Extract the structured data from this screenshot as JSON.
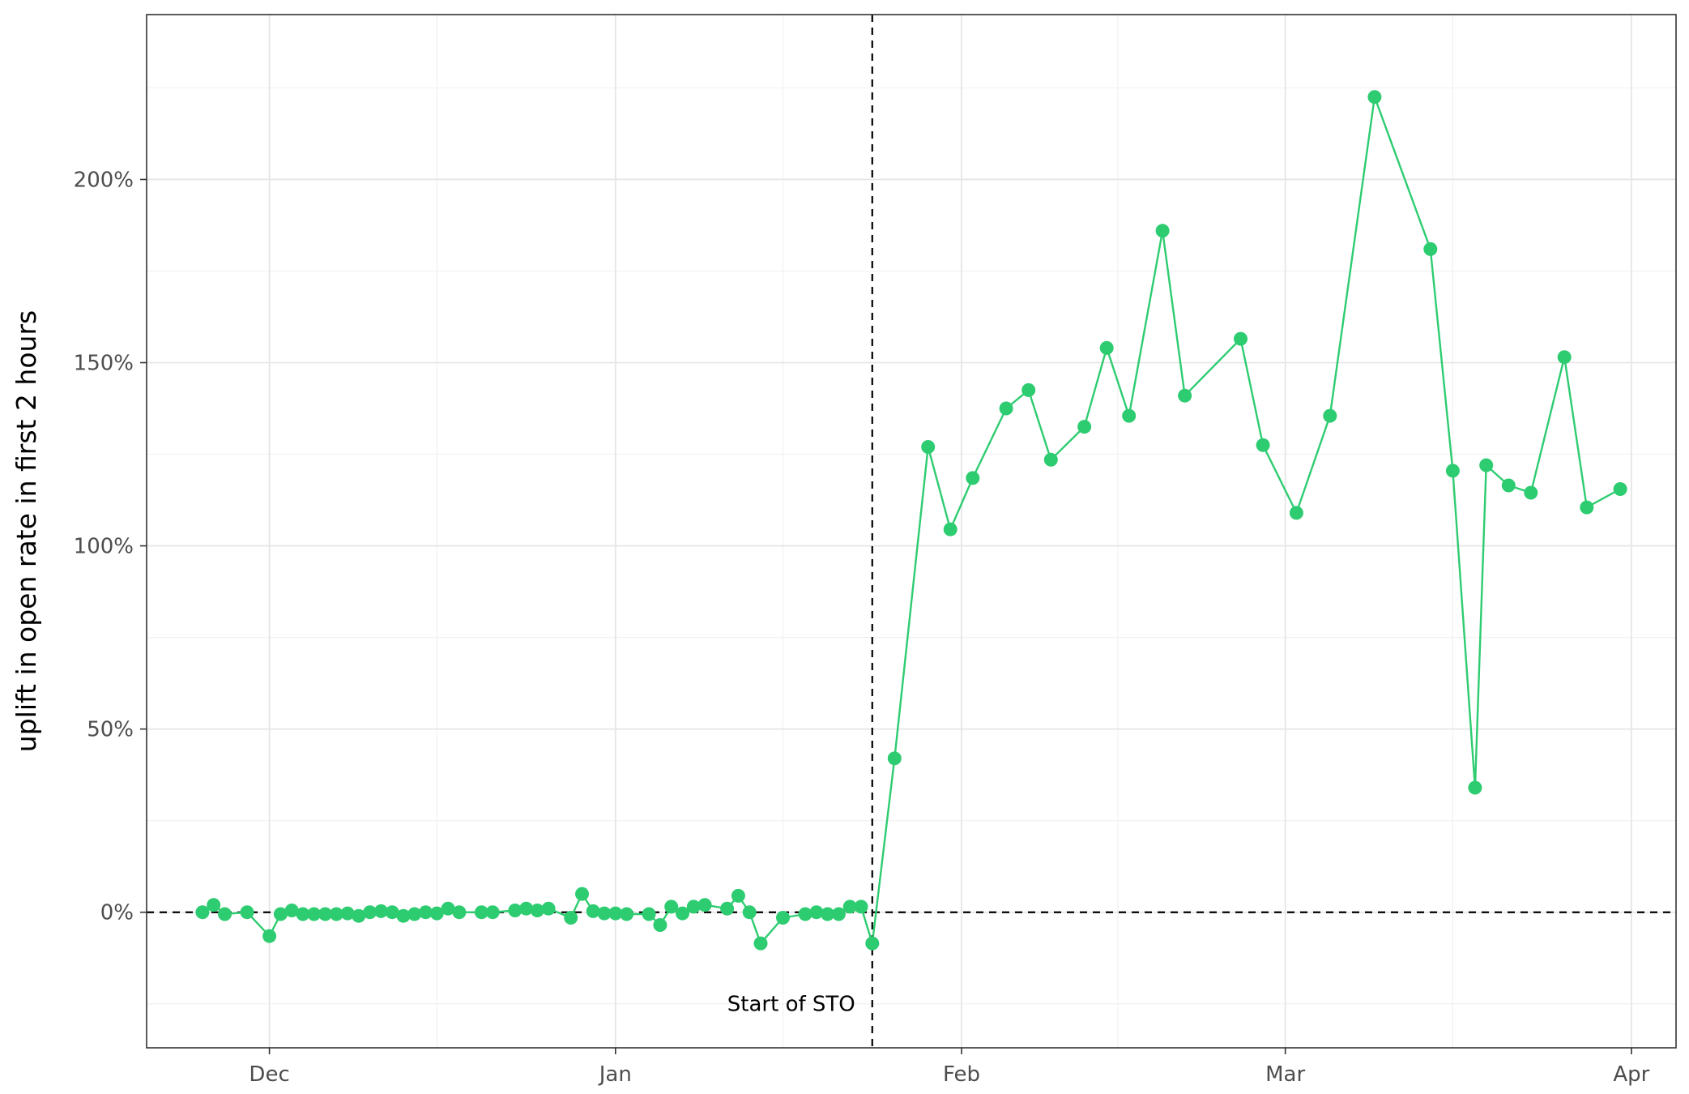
{
  "chart_data": {
    "type": "line",
    "title": "",
    "xlabel": "",
    "ylabel": "uplift in open rate in first 2 hours",
    "xlim": [
      "2019-11-20",
      "2020-04-05"
    ],
    "ylim": [
      -37,
      245
    ],
    "x_ticks": [
      {
        "date": "2019-12-01",
        "label": "Dec"
      },
      {
        "date": "2020-01-01",
        "label": "Jan"
      },
      {
        "date": "2020-02-01",
        "label": "Feb"
      },
      {
        "date": "2020-03-01",
        "label": "Mar"
      },
      {
        "date": "2020-04-01",
        "label": "Apr"
      }
    ],
    "x_minor_ticks": [
      "2019-12-16",
      "2020-01-16",
      "2020-02-15",
      "2020-03-16"
    ],
    "y_ticks": [
      {
        "value": 0,
        "label": "0%"
      },
      {
        "value": 50,
        "label": "50%"
      },
      {
        "value": 100,
        "label": "100%"
      },
      {
        "value": 150,
        "label": "150%"
      },
      {
        "value": 200,
        "label": "200%"
      }
    ],
    "y_minor_ticks": [
      -25,
      25,
      75,
      125,
      175,
      225
    ],
    "grid": true,
    "reference_lines": {
      "horizontal": {
        "value": 0,
        "style": "dashed"
      },
      "vertical": {
        "date": "2020-01-24",
        "style": "dashed",
        "label": "Start of STO"
      }
    },
    "colors": {
      "series": "#2ecc71",
      "reference": "#000000"
    },
    "series": [
      {
        "points": [
          [
            "2019-11-25",
            0
          ],
          [
            "2019-11-26",
            2
          ],
          [
            "2019-11-27",
            -0.5
          ],
          [
            "2019-11-29",
            0
          ],
          [
            "2019-12-01",
            -6.5
          ],
          [
            "2019-12-02",
            -0.5
          ],
          [
            "2019-12-03",
            0.5
          ],
          [
            "2019-12-04",
            -0.5
          ],
          [
            "2019-12-05",
            -0.5
          ],
          [
            "2019-12-06",
            -0.5
          ],
          [
            "2019-12-07",
            -0.5
          ],
          [
            "2019-12-08",
            -0.3
          ],
          [
            "2019-12-09",
            -1
          ],
          [
            "2019-12-10",
            0
          ],
          [
            "2019-12-11",
            0.3
          ],
          [
            "2019-12-12",
            0
          ],
          [
            "2019-12-13",
            -1
          ],
          [
            "2019-12-14",
            -0.5
          ],
          [
            "2019-12-15",
            0
          ],
          [
            "2019-12-16",
            -0.3
          ],
          [
            "2019-12-17",
            1
          ],
          [
            "2019-12-18",
            0
          ],
          [
            "2019-12-20",
            0
          ],
          [
            "2019-12-21",
            0
          ],
          [
            "2019-12-23",
            0.5
          ],
          [
            "2019-12-24",
            1
          ],
          [
            "2019-12-25",
            0.5
          ],
          [
            "2019-12-26",
            1
          ],
          [
            "2019-12-28",
            -1.5
          ],
          [
            "2019-12-29",
            5
          ],
          [
            "2019-12-30",
            0.3
          ],
          [
            "2019-12-31",
            -0.3
          ],
          [
            "2020-01-01",
            -0.3
          ],
          [
            "2020-01-02",
            -0.5
          ],
          [
            "2020-01-04",
            -0.5
          ],
          [
            "2020-01-05",
            -3.5
          ],
          [
            "2020-01-06",
            1.5
          ],
          [
            "2020-01-07",
            -0.3
          ],
          [
            "2020-01-08",
            1.5
          ],
          [
            "2020-01-09",
            2
          ],
          [
            "2020-01-11",
            1
          ],
          [
            "2020-01-12",
            4.5
          ],
          [
            "2020-01-13",
            0
          ],
          [
            "2020-01-14",
            -8.5
          ],
          [
            "2020-01-16",
            -1.5
          ],
          [
            "2020-01-18",
            -0.5
          ],
          [
            "2020-01-19",
            0
          ],
          [
            "2020-01-20",
            -0.5
          ],
          [
            "2020-01-21",
            -0.5
          ],
          [
            "2020-01-22",
            1.5
          ],
          [
            "2020-01-23",
            1.5
          ],
          [
            "2020-01-24",
            -8.5
          ],
          [
            "2020-01-26",
            42
          ],
          [
            "2020-01-29",
            127
          ],
          [
            "2020-01-31",
            104.5
          ],
          [
            "2020-02-02",
            118.5
          ],
          [
            "2020-02-05",
            137.5
          ],
          [
            "2020-02-07",
            142.5
          ],
          [
            "2020-02-09",
            123.5
          ],
          [
            "2020-02-12",
            132.5
          ],
          [
            "2020-02-14",
            154
          ],
          [
            "2020-02-16",
            135.5
          ],
          [
            "2020-02-19",
            186
          ],
          [
            "2020-02-21",
            141
          ],
          [
            "2020-02-26",
            156.5
          ],
          [
            "2020-02-28",
            127.5
          ],
          [
            "2020-03-02",
            109
          ],
          [
            "2020-03-05",
            135.5
          ],
          [
            "2020-03-09",
            222.5
          ],
          [
            "2020-03-14",
            181
          ],
          [
            "2020-03-16",
            120.5
          ],
          [
            "2020-03-18",
            34
          ],
          [
            "2020-03-19",
            122
          ],
          [
            "2020-03-21",
            116.5
          ],
          [
            "2020-03-23",
            114.5
          ],
          [
            "2020-03-26",
            151.5
          ],
          [
            "2020-03-28",
            110.5
          ],
          [
            "2020-03-31",
            115.5
          ]
        ]
      }
    ]
  }
}
